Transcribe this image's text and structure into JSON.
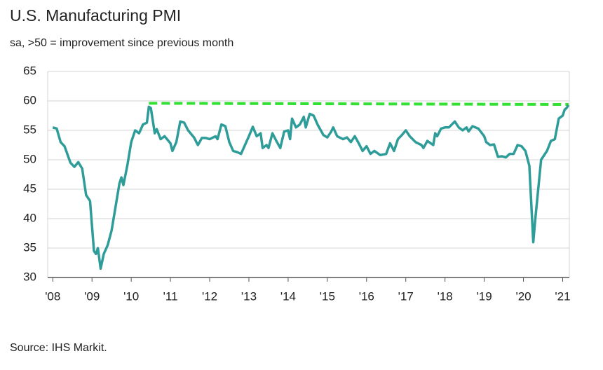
{
  "chart_data": {
    "type": "line",
    "title": "U.S. Manufacturing PMI",
    "subtitle": "sa, >50 = improvement since previous month",
    "source": "Source: IHS Markit.",
    "series": [
      {
        "color": "#2e9c98",
        "x": [
          2008.0,
          2008.1,
          2008.2,
          2008.3,
          2008.45,
          2008.55,
          2008.65,
          2008.75,
          2008.85,
          2008.95,
          2009.05,
          2009.1,
          2009.15,
          2009.22,
          2009.3,
          2009.4,
          2009.5,
          2009.6,
          2009.7,
          2009.75,
          2009.8,
          2009.9,
          2010.0,
          2010.1,
          2010.2,
          2010.3,
          2010.4,
          2010.45,
          2010.5,
          2010.6,
          2010.65,
          2010.75,
          2010.85,
          2011.0,
          2011.05,
          2011.15,
          2011.25,
          2011.35,
          2011.45,
          2011.6,
          2011.7,
          2011.8,
          2011.9,
          2012.0,
          2012.15,
          2012.2,
          2012.3,
          2012.4,
          2012.5,
          2012.6,
          2012.7,
          2012.8,
          2012.9,
          2013.0,
          2013.1,
          2013.2,
          2013.3,
          2013.35,
          2013.45,
          2013.5,
          2013.6,
          2013.7,
          2013.8,
          2013.9,
          2014.0,
          2014.05,
          2014.1,
          2014.2,
          2014.3,
          2014.4,
          2014.45,
          2014.55,
          2014.65,
          2014.75,
          2014.9,
          2015.0,
          2015.1,
          2015.15,
          2015.25,
          2015.4,
          2015.5,
          2015.6,
          2015.7,
          2015.8,
          2015.9,
          2016.0,
          2016.1,
          2016.2,
          2016.35,
          2016.5,
          2016.6,
          2016.7,
          2016.8,
          2016.9,
          2017.0,
          2017.1,
          2017.25,
          2017.4,
          2017.45,
          2017.55,
          2017.7,
          2017.75,
          2017.8,
          2017.9,
          2018.0,
          2018.1,
          2018.25,
          2018.35,
          2018.45,
          2018.55,
          2018.6,
          2018.7,
          2018.85,
          2019.0,
          2019.05,
          2019.15,
          2019.25,
          2019.35,
          2019.45,
          2019.55,
          2019.65,
          2019.75,
          2019.85,
          2019.95,
          2020.05,
          2020.15,
          2020.25,
          2020.3,
          2020.45,
          2020.6,
          2020.7,
          2020.8,
          2020.9,
          2021.0,
          2021.05,
          2021.1,
          2021.15
        ],
        "values": [
          55.5,
          55.3,
          53,
          52.3,
          49.5,
          48.8,
          49.6,
          48.5,
          44,
          43,
          34.5,
          34,
          35,
          31.5,
          34,
          35.5,
          38,
          42,
          46,
          47,
          45.7,
          49,
          53,
          55,
          54.5,
          56,
          56.3,
          59,
          58.8,
          54.5,
          55.2,
          53.5,
          54,
          52.8,
          51.5,
          53,
          56.5,
          56.3,
          55,
          53.8,
          52.5,
          53.7,
          53.7,
          53.5,
          54,
          53.5,
          56,
          55.7,
          53,
          51.5,
          51.3,
          51,
          52.5,
          54,
          55.6,
          54,
          54.5,
          52,
          52.5,
          52,
          54.5,
          53.2,
          52,
          54.8,
          55,
          53.5,
          57,
          55.5,
          56,
          57.3,
          55.5,
          57.8,
          57.5,
          56,
          54.2,
          53.8,
          54.8,
          55.5,
          54,
          53.5,
          53.8,
          53,
          54,
          52.8,
          51.5,
          52.3,
          51,
          51.5,
          50.8,
          51,
          52.8,
          51.5,
          53.5,
          54.2,
          55,
          54,
          53,
          52.5,
          52,
          53.2,
          52.5,
          54.5,
          54,
          55.3,
          55.5,
          55.5,
          56.5,
          55.5,
          55,
          55.5,
          54.8,
          55.7,
          55.3,
          54,
          53,
          52.5,
          52.6,
          50.5,
          50.6,
          50.4,
          51,
          51,
          52.5,
          52.3,
          51.5,
          49,
          36,
          39.8,
          50,
          51.5,
          53.2,
          53.5,
          57,
          57.5,
          58.5,
          58.8,
          59.3
        ]
      }
    ],
    "reference_line": {
      "x": [
        2010.45,
        2021.15
      ],
      "values": [
        59.6,
        59.4
      ],
      "color": "#33e033"
    },
    "xlim": [
      2007.87,
      2021.17
    ],
    "xticks": [
      {
        "value": 2008,
        "label": "'08"
      },
      {
        "value": 2009,
        "label": "'09"
      },
      {
        "value": 2010,
        "label": "'10"
      },
      {
        "value": 2011,
        "label": "'11"
      },
      {
        "value": 2012,
        "label": "'12"
      },
      {
        "value": 2013,
        "label": "'13"
      },
      {
        "value": 2014,
        "label": "'14"
      },
      {
        "value": 2015,
        "label": "'15"
      },
      {
        "value": 2016,
        "label": "'16"
      },
      {
        "value": 2017,
        "label": "'17"
      },
      {
        "value": 2018,
        "label": "'18"
      },
      {
        "value": 2019,
        "label": "'19"
      },
      {
        "value": 2020,
        "label": "'20"
      },
      {
        "value": 2021,
        "label": "'21"
      }
    ],
    "ylim": [
      30,
      65
    ],
    "yticks": [
      30,
      35,
      40,
      45,
      50,
      55,
      60,
      65
    ],
    "grid": true
  }
}
